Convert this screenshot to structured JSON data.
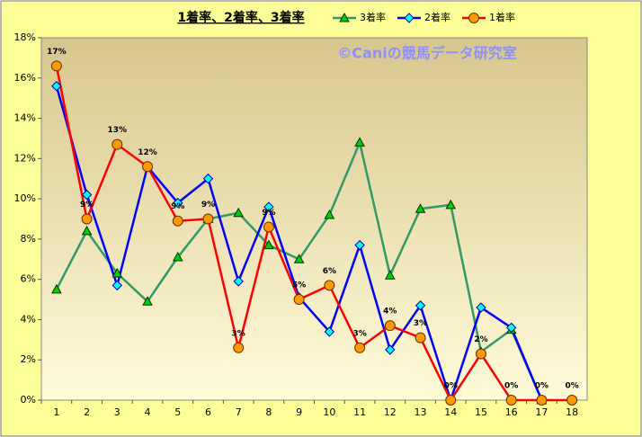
{
  "chart_data": {
    "type": "line",
    "title": "1着率、2着率、3着率",
    "annotation": "©Caniの競馬データ研究室",
    "categories": [
      "1",
      "2",
      "3",
      "4",
      "5",
      "6",
      "7",
      "8",
      "9",
      "10",
      "11",
      "12",
      "13",
      "14",
      "15",
      "16",
      "17",
      "18"
    ],
    "series": [
      {
        "name": "3着率",
        "color": "#339966",
        "marker": "triangle",
        "marker_color": "#00cc00",
        "values": [
          5.5,
          8.4,
          6.3,
          4.9,
          7.1,
          9.0,
          9.3,
          7.7,
          7.0,
          9.2,
          12.8,
          6.2,
          9.5,
          9.7,
          2.4,
          3.5,
          0,
          null
        ]
      },
      {
        "name": "2着率",
        "color": "#0000ff",
        "marker": "diamond",
        "marker_color": "#00ffff",
        "values": [
          15.6,
          10.2,
          5.7,
          11.6,
          9.8,
          11.0,
          5.9,
          9.6,
          5.1,
          3.4,
          7.7,
          2.5,
          4.7,
          0,
          4.6,
          3.6,
          0,
          null
        ]
      },
      {
        "name": "1着率",
        "color": "#ff0000",
        "marker": "circle",
        "marker_color": "#ff9900",
        "values": [
          16.6,
          9.0,
          12.7,
          11.6,
          8.9,
          9.0,
          2.6,
          8.6,
          5.0,
          5.7,
          2.6,
          3.7,
          3.1,
          0,
          2.3,
          0,
          0,
          0
        ],
        "value_labels": [
          "17%",
          "9%",
          "13%",
          "12%",
          "9%",
          "9%",
          "3%",
          "9%",
          "5%",
          "6%",
          "3%",
          "4%",
          "3%",
          "0%",
          "2%",
          "0%",
          "0%",
          "0%"
        ]
      }
    ],
    "ylim": [
      0,
      18
    ],
    "yticks": [
      {
        "value": 0,
        "label": "0%"
      },
      {
        "value": 2,
        "label": "2%"
      },
      {
        "value": 4,
        "label": "4%"
      },
      {
        "value": 6,
        "label": "6%"
      },
      {
        "value": 8,
        "label": "8%"
      },
      {
        "value": 10,
        "label": "10%"
      },
      {
        "value": 12,
        "label": "12%"
      },
      {
        "value": 14,
        "label": "14%"
      },
      {
        "value": 16,
        "label": "16%"
      },
      {
        "value": 18,
        "label": "18%"
      }
    ],
    "grid": false,
    "legend": "top-right"
  }
}
